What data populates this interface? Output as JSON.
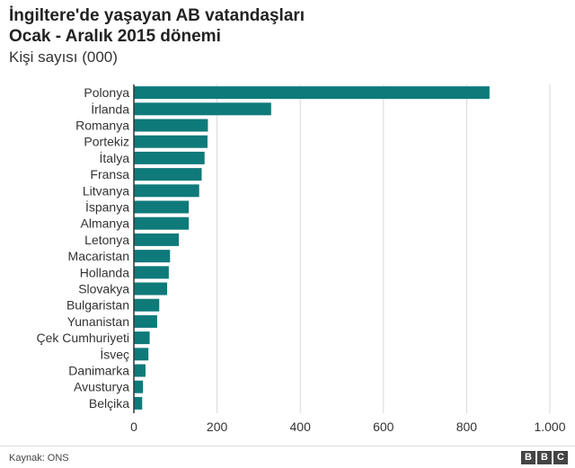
{
  "header": {
    "title_line1": "İngiltere'de yaşayan AB vatandaşları",
    "title_line2": "Ocak - Aralık 2015 dönemi",
    "subtitle": "Kişi sayısı (000)"
  },
  "footer": {
    "source": "Kaynak: ONS",
    "logo": [
      "B",
      "B",
      "C"
    ]
  },
  "colors": {
    "bar": "#0f7a7a",
    "grid": "#d9d9d9",
    "axis": "#333333"
  },
  "chart_data": {
    "type": "bar",
    "orientation": "horizontal",
    "categories": [
      "Polonya",
      "İrlanda",
      "Romanya",
      "Portekiz",
      "İtalya",
      "Fransa",
      "Litvanya",
      "İspanya",
      "Almanya",
      "Letonya",
      "Macaristan",
      "Hollanda",
      "Slovakya",
      "Bulgaristan",
      "Yunanistan",
      "Çek Cumhuriyeti",
      "İsveç",
      "Danimarka",
      "Avusturya",
      "Belçika"
    ],
    "values": [
      855,
      330,
      178,
      177,
      170,
      163,
      157,
      132,
      132,
      108,
      87,
      84,
      80,
      61,
      56,
      38,
      35,
      28,
      22,
      20
    ],
    "xlim": [
      0,
      1000
    ],
    "xticks": [
      0,
      200,
      400,
      600,
      800,
      1000
    ],
    "xtick_labels": [
      "0",
      "200",
      "400",
      "600",
      "800",
      "1.000"
    ],
    "grid": true
  }
}
